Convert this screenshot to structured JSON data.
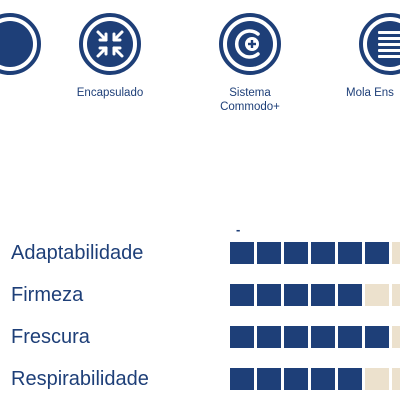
{
  "features": [
    {
      "name": "left-partial",
      "label": ""
    },
    {
      "name": "encapsulado",
      "label": "Encapsulado"
    },
    {
      "name": "commodo",
      "label": "Sistema\nCommodo+"
    },
    {
      "name": "mola",
      "label": "Mola Ens"
    }
  ],
  "icons": {
    "left": "partial-circle-icon",
    "encapsulado": "arrows-inward-icon",
    "commodo": "commodo-plus-icon",
    "mola": "stacked-bars-icon"
  },
  "colors": {
    "primary": "#1e3f78",
    "empty_segment": "#ece1cd"
  },
  "marker": "-",
  "ratings": [
    {
      "label": "Adaptabilidade",
      "filled": 6,
      "total": 7
    },
    {
      "label": "Firmeza",
      "filled": 5,
      "total": 7
    },
    {
      "label": "Frescura",
      "filled": 6,
      "total": 7
    },
    {
      "label": "Respirabilidade",
      "filled": 5,
      "total": 7
    }
  ]
}
